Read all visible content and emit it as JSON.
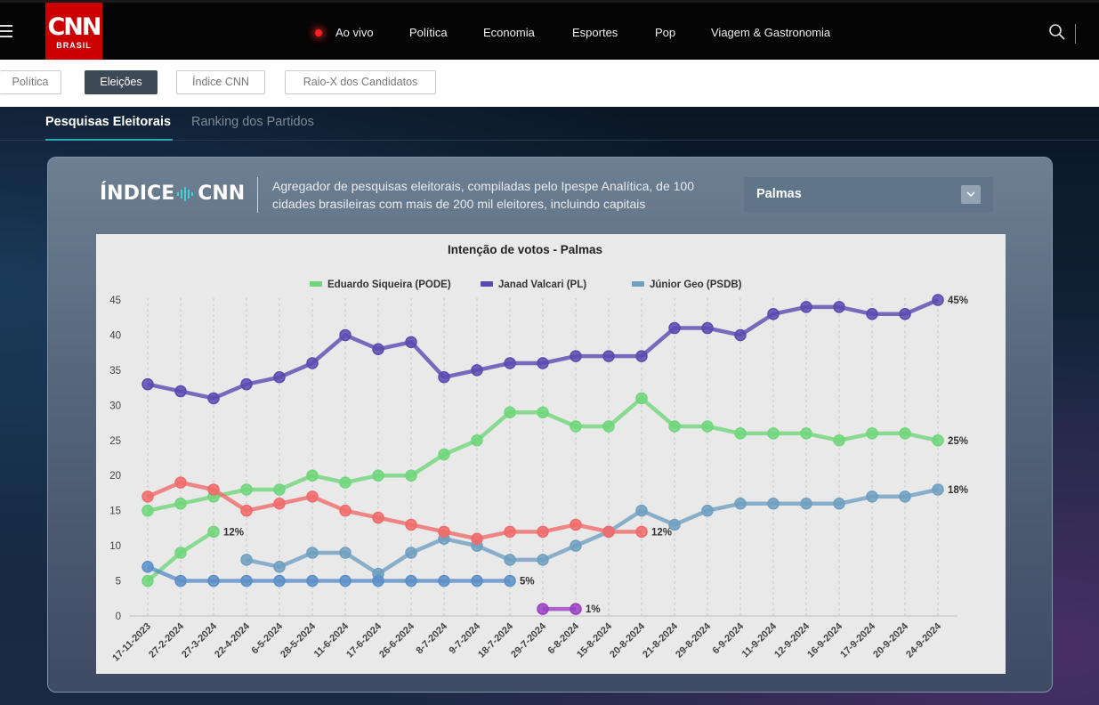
{
  "header": {
    "logo_main": "CNN",
    "logo_sub": "BRASIL",
    "nav": [
      {
        "label": "Ao vivo",
        "name": "nav-ao-vivo"
      },
      {
        "label": "Política",
        "name": "nav-politica"
      },
      {
        "label": "Economia",
        "name": "nav-economia"
      },
      {
        "label": "Esportes",
        "name": "nav-esportes"
      },
      {
        "label": "Pop",
        "name": "nav-pop"
      },
      {
        "label": "Viagem & Gastronomia",
        "name": "nav-viagem-gastronomia"
      }
    ],
    "live_color": "#ff2020"
  },
  "subnav": {
    "pills": [
      {
        "label": "Política",
        "active": false
      },
      {
        "label": "Eleições",
        "active": true
      },
      {
        "label": "Índice CNN",
        "active": false
      },
      {
        "label": "Raio-X dos Candidatos",
        "active": false
      }
    ]
  },
  "tabs": [
    {
      "label": "Pesquisas Eleitorais",
      "active": true
    },
    {
      "label": "Ranking dos Partidos",
      "active": false
    }
  ],
  "card": {
    "logo_left": "ÍNDICE",
    "logo_right": "CNN",
    "description": "Agregador de pesquisas eleitorais, compiladas pelo Ipespe Analítica, de 100 cidades brasileiras com mais de 200 mil eleitores, incluindo capitais",
    "city": "Palmas"
  },
  "chart_data": {
    "type": "line",
    "title": "Intenção de votos - Palmas",
    "xlabel": "",
    "ylabel": "",
    "ylim": [
      0,
      45
    ],
    "yticks": [
      0,
      5,
      10,
      15,
      20,
      25,
      30,
      35,
      40,
      45
    ],
    "grid": true,
    "legend_position": "top",
    "categories": [
      "17-11-2023",
      "27-2-2024",
      "27-3-2024",
      "22-4-2024",
      "6-5-2024",
      "28-5-2024",
      "11-6-2024",
      "17-6-2024",
      "26-6-2024",
      "8-7-2024",
      "9-7-2024",
      "18-7-2024",
      "29-7-2024",
      "6-8-2024",
      "15-8-2024",
      "20-8-2024",
      "21-8-2024",
      "29-8-2024",
      "6-9-2024",
      "11-9-2024",
      "12-9-2024",
      "16-9-2024",
      "17-9-2024",
      "20-9-2024",
      "24-9-2024"
    ],
    "series": [
      {
        "name": "Eduardo Siqueira (PODE)",
        "color": "#6fd67a",
        "legend": true,
        "values": [
          15,
          16,
          17,
          18,
          18,
          20,
          19,
          20,
          20,
          23,
          25,
          29,
          29,
          27,
          27,
          31,
          27,
          27,
          26,
          26,
          26,
          25,
          26,
          26,
          25
        ],
        "end_label": "25%"
      },
      {
        "name": "Janad Valcari (PL)",
        "color": "#5a4ab0",
        "legend": true,
        "values": [
          33,
          32,
          31,
          33,
          34,
          36,
          40,
          38,
          39,
          34,
          35,
          36,
          36,
          37,
          37,
          37,
          41,
          41,
          40,
          43,
          44,
          44,
          43,
          43,
          45
        ],
        "end_label": "45%"
      },
      {
        "name": "Júnior Geo (PSDB)",
        "color": "#6f9fc0",
        "legend": true,
        "values": [
          null,
          null,
          null,
          8,
          7,
          9,
          9,
          6,
          9,
          11,
          10,
          8,
          8,
          10,
          12,
          15,
          13,
          15,
          16,
          16,
          16,
          16,
          17,
          17,
          18
        ],
        "end_label": "18%"
      },
      {
        "name": "",
        "color": "#f06a6a",
        "legend": false,
        "values": [
          17,
          19,
          18,
          15,
          16,
          17,
          15,
          14,
          13,
          12,
          11,
          12,
          12,
          13,
          12,
          12,
          null,
          null,
          null,
          null,
          null,
          null,
          null,
          null,
          null
        ],
        "end_label": "12%"
      },
      {
        "name": "",
        "color": "#6fd67a",
        "legend": false,
        "values": [
          5,
          9,
          12,
          null,
          null,
          null,
          null,
          null,
          null,
          null,
          null,
          null,
          null,
          null,
          null,
          null,
          null,
          null,
          null,
          null,
          null,
          null,
          null,
          null,
          null
        ],
        "end_label": "12%"
      },
      {
        "name": "",
        "color": "#5b8fc8",
        "legend": false,
        "values": [
          7,
          5,
          5,
          5,
          5,
          5,
          5,
          5,
          5,
          5,
          5,
          5,
          null,
          null,
          null,
          null,
          null,
          null,
          null,
          null,
          null,
          null,
          null,
          null,
          null
        ],
        "end_label": "5%"
      },
      {
        "name": "",
        "color": "#9a3fc0",
        "legend": false,
        "values": [
          null,
          null,
          null,
          null,
          null,
          null,
          null,
          null,
          null,
          null,
          null,
          null,
          1,
          1,
          null,
          null,
          null,
          null,
          null,
          null,
          null,
          null,
          null,
          null,
          null
        ],
        "end_label": "1%"
      }
    ]
  }
}
